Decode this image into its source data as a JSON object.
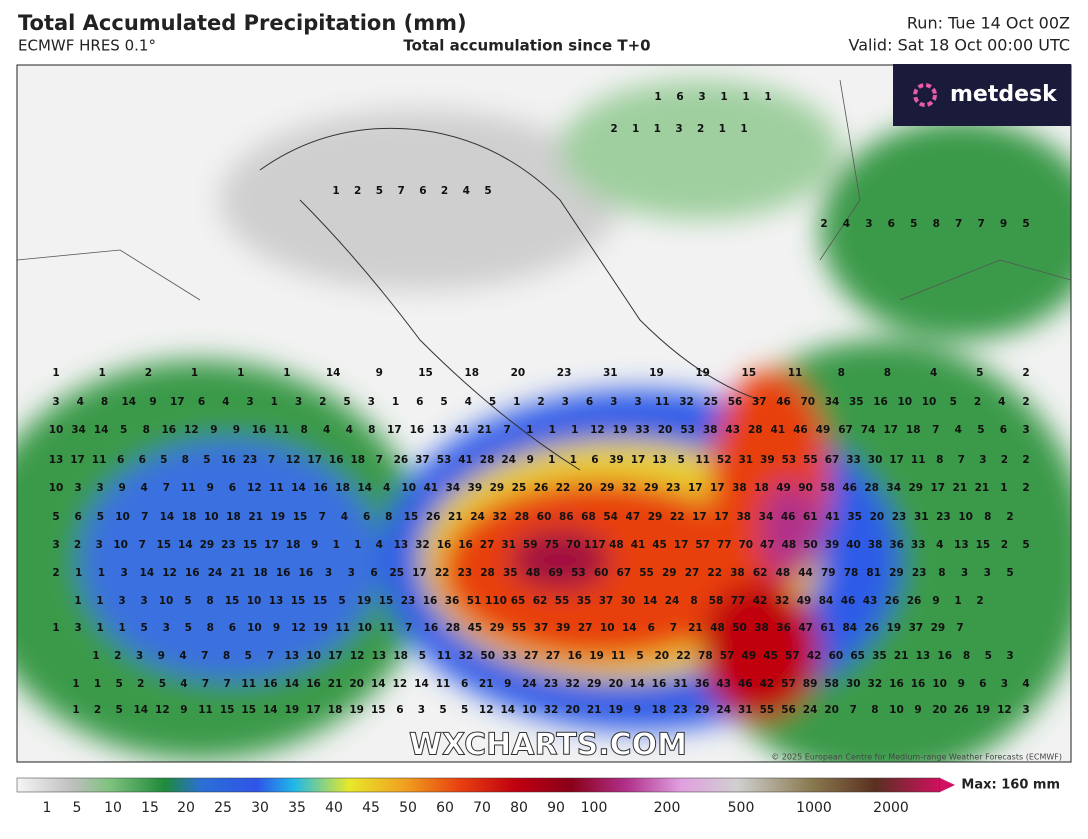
{
  "header": {
    "title": "Total Accumulated Precipitation (mm)",
    "model": "ECMWF HRES 0.1°",
    "subtitle": "Total accumulation since T+0",
    "run": "Run: Tue 14 Oct 00Z",
    "valid": "Valid: Sat 18 Oct 00:00 UTC"
  },
  "logo": "metdesk",
  "watermark": "WXCHARTS.COM",
  "copyright": "© 2025 European Centre for Medium-range Weather Forecasts (ECMWF)",
  "map_values": [
    [
      1,
      6,
      3,
      1,
      1,
      1
    ],
    [
      2,
      1,
      1,
      3,
      2,
      1,
      1
    ],
    [
      1,
      2,
      5,
      7,
      6,
      2,
      4,
      5
    ],
    [
      2,
      4,
      3,
      6,
      5,
      8,
      7,
      7,
      9,
      5
    ],
    [
      1,
      1,
      2,
      1,
      1,
      1,
      14,
      9,
      15,
      18,
      20,
      23,
      31,
      19,
      19,
      15,
      11,
      8,
      8,
      4,
      5,
      2
    ],
    [
      3,
      4,
      8,
      14,
      9,
      17,
      6,
      4,
      3,
      1,
      3,
      2,
      5,
      3,
      1,
      6,
      5,
      4,
      5,
      1,
      2,
      3,
      6,
      3,
      3,
      11,
      32,
      25,
      56,
      37,
      46,
      70,
      34,
      35,
      16,
      10,
      10,
      5,
      2,
      4,
      2
    ],
    [
      10,
      34,
      14,
      5,
      8,
      16,
      12,
      9,
      9,
      16,
      11,
      8,
      4,
      4,
      8,
      17,
      16,
      13,
      41,
      21,
      7,
      1,
      1,
      1,
      12,
      19,
      33,
      20,
      53,
      38,
      43,
      28,
      41,
      46,
      49,
      67,
      74,
      17,
      18,
      7,
      4,
      5,
      6,
      3
    ],
    [
      13,
      17,
      11,
      6,
      6,
      5,
      8,
      5,
      16,
      23,
      7,
      12,
      17,
      16,
      18,
      7,
      26,
      37,
      53,
      41,
      28,
      24,
      9,
      1,
      1,
      6,
      39,
      17,
      13,
      5,
      11,
      52,
      31,
      39,
      53,
      55,
      67,
      33,
      30,
      17,
      11,
      8,
      7,
      3,
      2,
      2
    ],
    [
      10,
      3,
      3,
      9,
      4,
      7,
      11,
      9,
      6,
      12,
      11,
      14,
      16,
      18,
      14,
      4,
      10,
      41,
      34,
      39,
      29,
      25,
      26,
      22,
      20,
      29,
      32,
      29,
      23,
      17,
      17,
      38,
      18,
      49,
      90,
      58,
      46,
      28,
      34,
      29,
      17,
      21,
      21,
      1,
      2
    ],
    [
      5,
      6,
      5,
      10,
      7,
      14,
      18,
      10,
      18,
      21,
      19,
      15,
      7,
      4,
      6,
      8,
      15,
      26,
      21,
      24,
      32,
      28,
      60,
      86,
      68,
      54,
      47,
      29,
      22,
      17,
      17,
      38,
      34,
      46,
      61,
      41,
      35,
      20,
      23,
      31,
      23,
      10,
      8,
      2
    ],
    [
      3,
      2,
      3,
      10,
      7,
      15,
      14,
      29,
      23,
      15,
      17,
      18,
      9,
      1,
      1,
      4,
      13,
      32,
      16,
      16,
      27,
      31,
      59,
      75,
      70,
      117,
      48,
      41,
      45,
      17,
      57,
      77,
      70,
      47,
      48,
      50,
      39,
      40,
      38,
      36,
      33,
      4,
      13,
      15,
      2,
      5
    ],
    [
      2,
      1,
      1,
      3,
      14,
      12,
      16,
      24,
      21,
      18,
      16,
      16,
      3,
      3,
      6,
      25,
      17,
      22,
      23,
      28,
      35,
      48,
      69,
      53,
      60,
      67,
      55,
      29,
      27,
      22,
      38,
      62,
      48,
      44,
      79,
      78,
      81,
      29,
      23,
      8,
      3,
      3,
      5
    ],
    [
      1,
      1,
      3,
      3,
      10,
      5,
      8,
      15,
      10,
      13,
      15,
      15,
      5,
      19,
      15,
      23,
      16,
      36,
      51,
      110,
      65,
      62,
      55,
      35,
      37,
      30,
      14,
      24,
      8,
      58,
      77,
      42,
      32,
      49,
      84,
      46,
      43,
      26,
      26,
      9,
      1,
      2
    ],
    [
      1,
      3,
      1,
      1,
      5,
      3,
      5,
      8,
      6,
      10,
      9,
      12,
      19,
      11,
      10,
      11,
      7,
      16,
      28,
      45,
      29,
      55,
      37,
      39,
      27,
      10,
      14,
      6,
      7,
      21,
      48,
      50,
      38,
      36,
      47,
      61,
      84,
      26,
      19,
      37,
      29,
      7
    ],
    [
      1,
      2,
      3,
      9,
      4,
      7,
      8,
      5,
      7,
      13,
      10,
      17,
      12,
      13,
      18,
      5,
      11,
      32,
      50,
      33,
      27,
      27,
      16,
      19,
      11,
      5,
      20,
      22,
      78,
      57,
      49,
      45,
      57,
      42,
      60,
      65,
      35,
      21,
      13,
      16,
      8,
      5,
      3
    ],
    [
      1,
      1,
      5,
      2,
      5,
      4,
      7,
      7,
      11,
      16,
      14,
      16,
      21,
      20,
      14,
      12,
      14,
      11,
      6,
      21,
      9,
      24,
      23,
      32,
      29,
      20,
      14,
      16,
      31,
      36,
      43,
      46,
      42,
      57,
      89,
      58,
      30,
      32,
      16,
      16,
      10,
      9,
      6,
      3,
      4
    ],
    [
      1,
      2,
      5,
      14,
      12,
      9,
      11,
      15,
      15,
      14,
      19,
      17,
      18,
      19,
      15,
      6,
      3,
      5,
      5,
      12,
      14,
      10,
      32,
      20,
      21,
      19,
      9,
      18,
      23,
      29,
      24,
      31,
      55,
      56,
      24,
      20,
      7,
      8,
      10,
      9,
      20,
      26,
      19,
      12,
      3
    ]
  ],
  "colorbar": {
    "labels": [
      1,
      5,
      10,
      15,
      20,
      25,
      30,
      35,
      40,
      45,
      50,
      60,
      70,
      80,
      90,
      100,
      200,
      500,
      1000,
      2000
    ],
    "max": "Max: 160 mm"
  }
}
